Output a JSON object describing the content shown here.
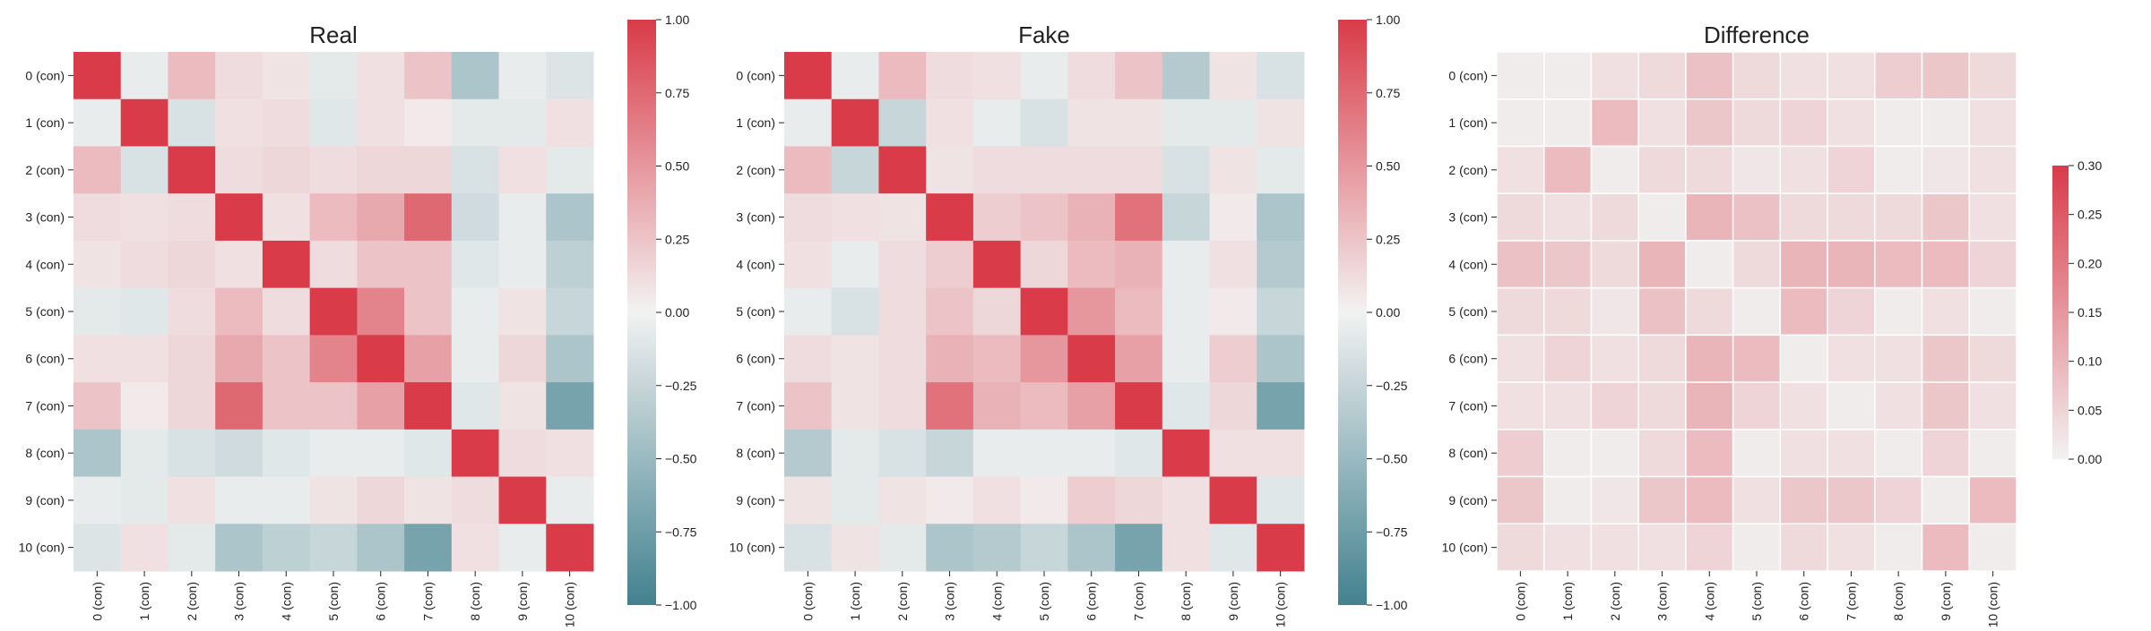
{
  "figure": {
    "labels": [
      "0 (con)",
      "1 (con)",
      "2 (con)",
      "3 (con)",
      "4 (con)",
      "5 (con)",
      "6 (con)",
      "7 (con)",
      "8 (con)",
      "9 (con)",
      "10 (con)"
    ]
  },
  "colors": {
    "positive": "#d93b48",
    "neutral": "#f2f2f2",
    "negative": "#42818f"
  },
  "chart_data": [
    {
      "type": "heatmap",
      "title": "Real",
      "vmin": -1.0,
      "vmax": 1.0,
      "colorbar_ticks": [
        "1.00",
        "0.75",
        "0.50",
        "0.25",
        "0.00",
        "−0.25",
        "−0.50",
        "−0.75",
        "−1.00"
      ],
      "colorbar_values": [
        1.0,
        0.75,
        0.5,
        0.25,
        0.0,
        -0.25,
        -0.5,
        -0.75,
        -1.0
      ],
      "values": [
        [
          1.0,
          -0.05,
          0.3,
          0.12,
          0.08,
          -0.08,
          0.1,
          0.25,
          -0.4,
          -0.05,
          -0.12
        ],
        [
          -0.05,
          1.0,
          -0.15,
          0.1,
          0.12,
          -0.1,
          0.1,
          0.05,
          -0.08,
          -0.08,
          0.1
        ],
        [
          0.3,
          -0.15,
          1.0,
          0.12,
          0.15,
          0.12,
          0.15,
          0.15,
          -0.15,
          0.1,
          -0.08
        ],
        [
          0.12,
          0.1,
          0.12,
          1.0,
          0.1,
          0.3,
          0.4,
          0.75,
          -0.2,
          -0.05,
          -0.4
        ],
        [
          0.08,
          0.12,
          0.15,
          0.1,
          1.0,
          0.12,
          0.25,
          0.25,
          -0.1,
          -0.05,
          -0.3
        ],
        [
          -0.08,
          -0.1,
          0.12,
          0.3,
          0.12,
          1.0,
          0.6,
          0.25,
          -0.05,
          0.08,
          -0.25
        ],
        [
          0.1,
          0.1,
          0.15,
          0.4,
          0.25,
          0.6,
          1.0,
          0.45,
          -0.05,
          0.15,
          -0.4
        ],
        [
          0.25,
          0.05,
          0.15,
          0.75,
          0.25,
          0.25,
          0.45,
          1.0,
          -0.1,
          0.08,
          -0.7
        ],
        [
          -0.4,
          -0.08,
          -0.15,
          -0.2,
          -0.1,
          -0.05,
          -0.05,
          -0.1,
          1.0,
          0.12,
          0.1
        ],
        [
          -0.05,
          -0.08,
          0.1,
          -0.05,
          -0.05,
          0.08,
          0.15,
          0.08,
          0.12,
          1.0,
          -0.05
        ],
        [
          -0.12,
          0.1,
          -0.08,
          -0.4,
          -0.3,
          -0.25,
          -0.4,
          -0.7,
          0.1,
          -0.05,
          1.0
        ]
      ]
    },
    {
      "type": "heatmap",
      "title": "Fake",
      "vmin": -1.0,
      "vmax": 1.0,
      "colorbar_ticks": [
        "1.00",
        "0.75",
        "0.50",
        "0.25",
        "0.00",
        "−0.25",
        "−0.50",
        "−0.75",
        "−1.00"
      ],
      "colorbar_values": [
        1.0,
        0.75,
        0.5,
        0.25,
        0.0,
        -0.25,
        -0.5,
        -0.75,
        -1.0
      ],
      "values": [
        [
          1.0,
          -0.05,
          0.3,
          0.12,
          0.1,
          -0.05,
          0.12,
          0.25,
          -0.35,
          0.08,
          -0.15
        ],
        [
          -0.05,
          1.0,
          -0.25,
          0.1,
          -0.05,
          -0.15,
          0.08,
          0.08,
          -0.08,
          -0.08,
          0.08
        ],
        [
          0.3,
          -0.25,
          1.0,
          0.08,
          0.12,
          0.12,
          0.12,
          0.12,
          -0.15,
          0.08,
          -0.08
        ],
        [
          0.12,
          0.1,
          0.08,
          1.0,
          0.2,
          0.25,
          0.35,
          0.7,
          -0.25,
          0.05,
          -0.4
        ],
        [
          0.1,
          -0.05,
          0.12,
          0.2,
          1.0,
          0.15,
          0.3,
          0.35,
          -0.05,
          0.1,
          -0.35
        ],
        [
          -0.05,
          -0.15,
          0.12,
          0.25,
          0.15,
          1.0,
          0.5,
          0.3,
          -0.05,
          0.05,
          -0.25
        ],
        [
          0.12,
          0.08,
          0.12,
          0.35,
          0.3,
          0.5,
          1.0,
          0.45,
          -0.05,
          0.2,
          -0.4
        ],
        [
          0.25,
          0.08,
          0.12,
          0.7,
          0.35,
          0.3,
          0.45,
          1.0,
          -0.1,
          0.15,
          -0.7
        ],
        [
          -0.35,
          -0.08,
          -0.15,
          -0.25,
          -0.05,
          -0.05,
          -0.05,
          -0.1,
          1.0,
          0.1,
          0.1
        ],
        [
          0.08,
          -0.08,
          0.08,
          0.05,
          0.1,
          0.05,
          0.2,
          0.15,
          0.1,
          1.0,
          -0.1
        ],
        [
          -0.15,
          0.08,
          -0.08,
          -0.4,
          -0.35,
          -0.25,
          -0.4,
          -0.7,
          0.1,
          -0.1,
          1.0
        ]
      ]
    },
    {
      "type": "heatmap",
      "title": "Difference",
      "vmin": 0.0,
      "vmax": 0.3,
      "colorbar_ticks": [
        "0.30",
        "0.25",
        "0.20",
        "0.15",
        "0.10",
        "0.05",
        "0.00"
      ],
      "colorbar_values": [
        0.3,
        0.25,
        0.2,
        0.15,
        0.1,
        0.05,
        0.0
      ],
      "values": [
        [
          0.01,
          0.01,
          0.03,
          0.04,
          0.08,
          0.04,
          0.03,
          0.03,
          0.06,
          0.07,
          0.04
        ],
        [
          0.01,
          0.01,
          0.09,
          0.03,
          0.07,
          0.04,
          0.05,
          0.03,
          0.01,
          0.01,
          0.03
        ],
        [
          0.03,
          0.09,
          0.01,
          0.04,
          0.04,
          0.02,
          0.03,
          0.05,
          0.01,
          0.02,
          0.03
        ],
        [
          0.04,
          0.03,
          0.04,
          0.01,
          0.1,
          0.08,
          0.04,
          0.04,
          0.04,
          0.07,
          0.03
        ],
        [
          0.08,
          0.07,
          0.04,
          0.1,
          0.01,
          0.04,
          0.1,
          0.1,
          0.09,
          0.09,
          0.05
        ],
        [
          0.04,
          0.04,
          0.02,
          0.08,
          0.04,
          0.01,
          0.09,
          0.05,
          0.01,
          0.03,
          0.01
        ],
        [
          0.03,
          0.05,
          0.03,
          0.04,
          0.1,
          0.09,
          0.01,
          0.03,
          0.03,
          0.07,
          0.04
        ],
        [
          0.03,
          0.03,
          0.05,
          0.04,
          0.1,
          0.05,
          0.03,
          0.01,
          0.03,
          0.07,
          0.03
        ],
        [
          0.06,
          0.01,
          0.01,
          0.04,
          0.09,
          0.01,
          0.03,
          0.03,
          0.01,
          0.05,
          0.01
        ],
        [
          0.07,
          0.01,
          0.02,
          0.07,
          0.09,
          0.03,
          0.07,
          0.07,
          0.05,
          0.01,
          0.09
        ],
        [
          0.04,
          0.03,
          0.03,
          0.03,
          0.05,
          0.01,
          0.04,
          0.03,
          0.01,
          0.09,
          0.01
        ]
      ]
    }
  ]
}
